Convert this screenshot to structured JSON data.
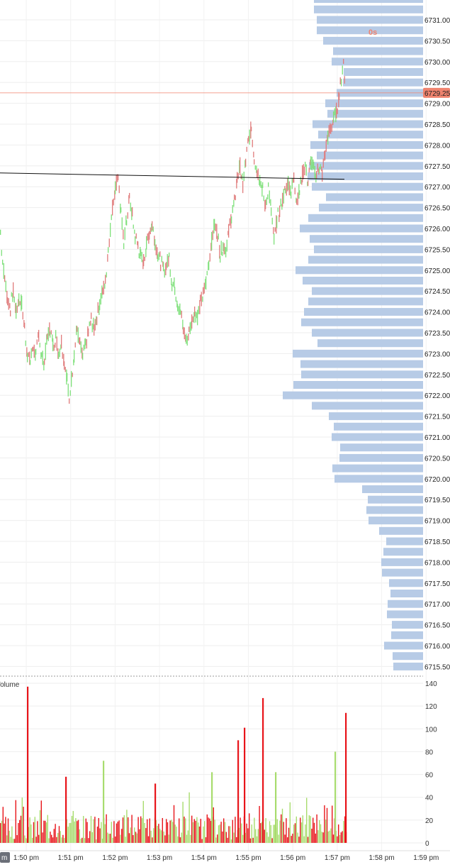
{
  "chart_data": {
    "type": "candlestick",
    "price_axis": {
      "ticks": [
        "6731.00",
        "6730.50",
        "6730.00",
        "6729.50",
        "6729.00",
        "6728.50",
        "6728.00",
        "6727.50",
        "6727.00",
        "6726.50",
        "6726.00",
        "6725.50",
        "6725.00",
        "6724.50",
        "6724.00",
        "6723.50",
        "6723.00",
        "6722.50",
        "6722.00",
        "6721.50",
        "6721.00",
        "6720.50",
        "6720.00",
        "6719.50",
        "6719.00",
        "6718.50",
        "6718.00",
        "6717.50",
        "6717.00",
        "6716.50",
        "6716.00",
        "6715.50"
      ],
      "range": [
        6715.3,
        6731.5
      ]
    },
    "last_price": {
      "value": 6729.25,
      "label": "6729.25",
      "color": "#f0836e"
    },
    "timer_label": "0s",
    "time_axis": {
      "labels": [
        "1:50 pm",
        "1:51 pm",
        "1:52 pm",
        "1:53 pm",
        "1:54 pm",
        "1:55 pm",
        "1:56 pm",
        "1:57 pm",
        "1:58 pm",
        "1:59 pm"
      ],
      "first_label_badge": "m"
    },
    "price_path": [
      [
        0,
        6725.9
      ],
      [
        3,
        6725.2
      ],
      [
        6,
        6724.8
      ],
      [
        10,
        6724.3
      ],
      [
        14,
        6724.1
      ],
      [
        18,
        6724.5
      ],
      [
        22,
        6724.0
      ],
      [
        26,
        6724.3
      ],
      [
        30,
        6724.2
      ],
      [
        34,
        6723.6
      ],
      [
        38,
        6723.0
      ],
      [
        42,
        6722.8
      ],
      [
        46,
        6723.2
      ],
      [
        50,
        6722.9
      ],
      [
        54,
        6723.5
      ],
      [
        58,
        6722.9
      ],
      [
        62,
        6722.8
      ],
      [
        66,
        6723.4
      ],
      [
        70,
        6723.6
      ],
      [
        74,
        6723.2
      ],
      [
        78,
        6723.4
      ],
      [
        82,
        6723.0
      ],
      [
        86,
        6723.3
      ],
      [
        90,
        6722.8
      ],
      [
        94,
        6722.4
      ],
      [
        97,
        6721.8
      ],
      [
        100,
        6722.4
      ],
      [
        104,
        6723.0
      ],
      [
        108,
        6723.6
      ],
      [
        112,
        6723.2
      ],
      [
        116,
        6722.9
      ],
      [
        120,
        6723.2
      ],
      [
        124,
        6723.5
      ],
      [
        128,
        6723.8
      ],
      [
        132,
        6723.6
      ],
      [
        136,
        6723.9
      ],
      [
        140,
        6724.2
      ],
      [
        144,
        6724.5
      ],
      [
        148,
        6724.7
      ],
      [
        152,
        6725.5
      ],
      [
        155,
        6726.0
      ],
      [
        158,
        6726.5
      ],
      [
        162,
        6727.0
      ],
      [
        166,
        6727.3
      ],
      [
        170,
        6726.3
      ],
      [
        174,
        6725.7
      ],
      [
        178,
        6726.2
      ],
      [
        182,
        6726.7
      ],
      [
        186,
        6726.3
      ],
      [
        190,
        6725.8
      ],
      [
        194,
        6725.6
      ],
      [
        198,
        6725.3
      ],
      [
        202,
        6725.2
      ],
      [
        206,
        6725.6
      ],
      [
        210,
        6725.9
      ],
      [
        214,
        6726.1
      ],
      [
        218,
        6725.7
      ],
      [
        222,
        6725.4
      ],
      [
        226,
        6725.2
      ],
      [
        230,
        6725.0
      ],
      [
        234,
        6725.1
      ],
      [
        238,
        6725.3
      ],
      [
        242,
        6724.7
      ],
      [
        246,
        6724.6
      ],
      [
        250,
        6724.2
      ],
      [
        254,
        6724.0
      ],
      [
        258,
        6723.6
      ],
      [
        262,
        6723.3
      ],
      [
        266,
        6723.5
      ],
      [
        270,
        6723.8
      ],
      [
        274,
        6724.0
      ],
      [
        278,
        6723.9
      ],
      [
        282,
        6724.2
      ],
      [
        286,
        6724.4
      ],
      [
        290,
        6724.7
      ],
      [
        294,
        6725.2
      ],
      [
        298,
        6725.7
      ],
      [
        302,
        6726.1
      ],
      [
        306,
        6725.9
      ],
      [
        310,
        6725.4
      ],
      [
        314,
        6725.6
      ],
      [
        318,
        6725.5
      ],
      [
        322,
        6725.9
      ],
      [
        326,
        6726.3
      ],
      [
        330,
        6726.6
      ],
      [
        334,
        6727.2
      ],
      [
        338,
        6727.5
      ],
      [
        342,
        6727.0
      ],
      [
        346,
        6727.6
      ],
      [
        350,
        6728.1
      ],
      [
        354,
        6728.4
      ],
      [
        358,
        6727.7
      ],
      [
        362,
        6727.4
      ],
      [
        366,
        6727.2
      ],
      [
        370,
        6726.9
      ],
      [
        374,
        6726.5
      ],
      [
        378,
        6727.0
      ],
      [
        382,
        6726.4
      ],
      [
        386,
        6725.7
      ],
      [
        390,
        6726.2
      ],
      [
        394,
        6726.4
      ],
      [
        398,
        6726.7
      ],
      [
        402,
        6726.9
      ],
      [
        406,
        6727.1
      ],
      [
        410,
        6726.9
      ],
      [
        414,
        6727.2
      ],
      [
        418,
        6726.7
      ],
      [
        422,
        6726.9
      ],
      [
        426,
        6727.3
      ],
      [
        430,
        6727.5
      ],
      [
        434,
        6727.1
      ],
      [
        438,
        6727.6
      ],
      [
        442,
        6727.4
      ],
      [
        446,
        6727.3
      ],
      [
        450,
        6727.5
      ],
      [
        454,
        6727.3
      ],
      [
        458,
        6727.8
      ],
      [
        462,
        6728.2
      ],
      [
        466,
        6728.4
      ],
      [
        470,
        6728.6
      ],
      [
        474,
        6728.8
      ],
      [
        478,
        6729.2
      ],
      [
        481,
        6729.6
      ],
      [
        484,
        6730.0
      ],
      [
        486,
        6729.6
      ]
    ],
    "vwap_line": {
      "color": "#111111",
      "start": [
        0,
        6727.33
      ],
      "end": [
        486,
        6727.18
      ]
    },
    "volume_profile": {
      "color": "#b7cbe6",
      "rows": [
        {
          "price": 6731.5,
          "width": 154
        },
        {
          "price": 6731.25,
          "width": 154
        },
        {
          "price": 6731.0,
          "width": 150
        },
        {
          "price": 6730.75,
          "width": 150
        },
        {
          "price": 6730.5,
          "width": 141
        },
        {
          "price": 6730.25,
          "width": 127
        },
        {
          "price": 6730.0,
          "width": 129
        },
        {
          "price": 6729.75,
          "width": 112
        },
        {
          "price": 6729.5,
          "width": 113
        },
        {
          "price": 6729.25,
          "width": 122
        },
        {
          "price": 6729.0,
          "width": 138
        },
        {
          "price": 6728.75,
          "width": 135
        },
        {
          "price": 6728.5,
          "width": 156
        },
        {
          "price": 6728.25,
          "width": 148
        },
        {
          "price": 6728.0,
          "width": 159
        },
        {
          "price": 6727.75,
          "width": 150
        },
        {
          "price": 6727.5,
          "width": 161
        },
        {
          "price": 6727.25,
          "width": 163
        },
        {
          "price": 6727.0,
          "width": 157
        },
        {
          "price": 6726.75,
          "width": 137
        },
        {
          "price": 6726.5,
          "width": 147
        },
        {
          "price": 6726.25,
          "width": 162
        },
        {
          "price": 6726.0,
          "width": 174
        },
        {
          "price": 6725.75,
          "width": 160
        },
        {
          "price": 6725.5,
          "width": 154
        },
        {
          "price": 6725.25,
          "width": 162
        },
        {
          "price": 6725.0,
          "width": 180
        },
        {
          "price": 6724.75,
          "width": 170
        },
        {
          "price": 6724.5,
          "width": 157
        },
        {
          "price": 6724.25,
          "width": 162
        },
        {
          "price": 6724.0,
          "width": 168
        },
        {
          "price": 6723.75,
          "width": 172
        },
        {
          "price": 6723.5,
          "width": 157
        },
        {
          "price": 6723.25,
          "width": 149
        },
        {
          "price": 6723.0,
          "width": 184
        },
        {
          "price": 6722.75,
          "width": 173
        },
        {
          "price": 6722.5,
          "width": 172
        },
        {
          "price": 6722.25,
          "width": 183
        },
        {
          "price": 6722.0,
          "width": 198
        },
        {
          "price": 6721.75,
          "width": 157
        },
        {
          "price": 6721.5,
          "width": 133
        },
        {
          "price": 6721.25,
          "width": 126
        },
        {
          "price": 6721.0,
          "width": 129
        },
        {
          "price": 6720.75,
          "width": 117
        },
        {
          "price": 6720.5,
          "width": 118
        },
        {
          "price": 6720.25,
          "width": 128
        },
        {
          "price": 6720.0,
          "width": 125
        },
        {
          "price": 6719.75,
          "width": 86
        },
        {
          "price": 6719.5,
          "width": 78
        },
        {
          "price": 6719.25,
          "width": 80
        },
        {
          "price": 6719.0,
          "width": 77
        },
        {
          "price": 6718.75,
          "width": 62
        },
        {
          "price": 6718.5,
          "width": 52
        },
        {
          "price": 6718.25,
          "width": 56
        },
        {
          "price": 6718.0,
          "width": 59
        },
        {
          "price": 6717.75,
          "width": 58
        },
        {
          "price": 6717.5,
          "width": 48
        },
        {
          "price": 6717.25,
          "width": 46
        },
        {
          "price": 6717.0,
          "width": 50
        },
        {
          "price": 6716.75,
          "width": 51
        },
        {
          "price": 6716.5,
          "width": 44
        },
        {
          "price": 6716.25,
          "width": 45
        },
        {
          "price": 6716.0,
          "width": 55
        },
        {
          "price": 6715.75,
          "width": 43
        },
        {
          "price": 6715.5,
          "width": 42
        }
      ]
    },
    "volume": {
      "label": "Volume",
      "axis_ticks": [
        "140",
        "120",
        "100",
        "80",
        "60",
        "40",
        "20",
        "0"
      ],
      "range": [
        0,
        140
      ],
      "up_color": "#a8dc6e",
      "down_color": "#e8141a",
      "spikes": [
        {
          "x": 38,
          "value": 137,
          "dir": "down"
        },
        {
          "x": 335,
          "value": 90,
          "dir": "down"
        },
        {
          "x": 344,
          "value": 101,
          "dir": "down"
        },
        {
          "x": 370,
          "value": 127,
          "dir": "down"
        },
        {
          "x": 487,
          "value": 114,
          "dir": "down"
        },
        {
          "x": 145,
          "value": 72,
          "dir": "up"
        },
        {
          "x": 298,
          "value": 62,
          "dir": "up"
        },
        {
          "x": 472,
          "value": 80,
          "dir": "up"
        },
        {
          "x": 92,
          "value": 58,
          "dir": "down"
        },
        {
          "x": 218,
          "value": 52,
          "dir": "down"
        },
        {
          "x": 388,
          "value": 62,
          "dir": "up"
        }
      ]
    }
  }
}
